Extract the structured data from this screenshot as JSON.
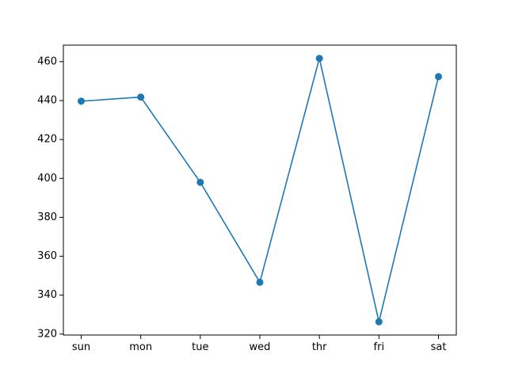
{
  "chart_data": {
    "type": "line",
    "title": "",
    "xlabel": "",
    "ylabel": "",
    "categories": [
      "sun",
      "mon",
      "tue",
      "wed",
      "thr",
      "fri",
      "sat"
    ],
    "series": [
      {
        "values": [
          439.7,
          441.8,
          398.0,
          346.6,
          461.7,
          326.3,
          452.3
        ],
        "color": "#1f77b4",
        "marker": "circle"
      }
    ],
    "ylim": [
      319.5,
      468.5
    ],
    "yticks": [
      320,
      340,
      360,
      380,
      400,
      420,
      440,
      460
    ],
    "grid": false,
    "legend": "none"
  }
}
